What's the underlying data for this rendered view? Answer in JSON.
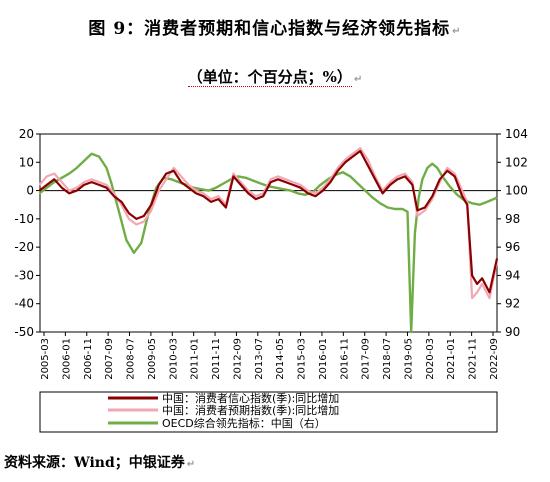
{
  "title": "图 9：消费者预期和信心指数与经济领先指标",
  "subtitle": "（单位：个百分点；%）",
  "source": "资料来源：Wind；中银证券",
  "chart_data": {
    "type": "line",
    "left_axis": {
      "ticks": [
        "20",
        "10",
        "0",
        "-10",
        "-20",
        "-30",
        "-40",
        "-50"
      ],
      "ylim": [
        -50,
        20
      ]
    },
    "right_axis": {
      "ticks": [
        "104",
        "102",
        "100",
        "98",
        "96",
        "94",
        "92",
        "90"
      ],
      "ylim": [
        90,
        104
      ]
    },
    "x_tick_labels": [
      "2005-03",
      "2006-01",
      "2006-11",
      "2007-09",
      "2008-07",
      "2009-05",
      "2010-03",
      "2011-01",
      "2011-11",
      "2012-09",
      "2013-07",
      "2014-05",
      "2015-03",
      "2016-01",
      "2016-11",
      "2017-09",
      "2018-07",
      "2019-05",
      "2020-03",
      "2021-01",
      "2021-11",
      "2022-09"
    ],
    "x_range": [
      2005.125,
      2023.5
    ],
    "series": [
      {
        "name": "中国：消费者信心指数(季):同比增加",
        "color": "#8b0000",
        "axis": "left",
        "x": [
          2005.1,
          2005.4,
          2005.7,
          2006.0,
          2006.3,
          2006.6,
          2006.9,
          2007.2,
          2007.5,
          2007.8,
          2008.1,
          2008.4,
          2008.7,
          2009.0,
          2009.3,
          2009.6,
          2009.9,
          2010.2,
          2010.5,
          2010.8,
          2011.1,
          2011.4,
          2011.7,
          2012.0,
          2012.3,
          2012.6,
          2012.9,
          2013.2,
          2013.5,
          2013.8,
          2014.1,
          2014.4,
          2014.7,
          2015.0,
          2015.3,
          2015.6,
          2015.9,
          2016.2,
          2016.5,
          2016.8,
          2017.1,
          2017.4,
          2017.7,
          2018.0,
          2018.3,
          2018.6,
          2018.9,
          2019.2,
          2019.5,
          2019.8,
          2020.1,
          2020.3,
          2020.6,
          2020.9,
          2021.2,
          2021.5,
          2021.8,
          2022.1,
          2022.3,
          2022.5,
          2022.7,
          2022.9,
          2023.2,
          2023.5
        ],
        "y": [
          0,
          2,
          4,
          1,
          -1,
          0,
          2,
          3,
          2,
          1,
          -2,
          -4,
          -8,
          -10,
          -9,
          -5,
          2,
          6,
          7,
          3,
          1,
          -1,
          -2,
          -4,
          -3,
          -6,
          5,
          2,
          -1,
          -3,
          -2,
          3,
          4,
          3,
          2,
          1,
          -1,
          -2,
          0,
          3,
          7,
          10,
          12,
          14,
          9,
          4,
          -1,
          2,
          4,
          5,
          2,
          -7,
          -6,
          -2,
          4,
          7,
          5,
          -2,
          -5,
          -30,
          -33,
          -31,
          -36,
          -24
        ]
      },
      {
        "name": "中国：消费者预期指数(季):同比增加",
        "color": "#f2a7b3",
        "axis": "left",
        "x": [
          2005.1,
          2005.4,
          2005.7,
          2006.0,
          2006.3,
          2006.6,
          2006.9,
          2007.2,
          2007.5,
          2007.8,
          2008.1,
          2008.4,
          2008.7,
          2009.0,
          2009.3,
          2009.6,
          2009.9,
          2010.2,
          2010.5,
          2010.8,
          2011.1,
          2011.4,
          2011.7,
          2012.0,
          2012.3,
          2012.6,
          2012.9,
          2013.2,
          2013.5,
          2013.8,
          2014.1,
          2014.4,
          2014.7,
          2015.0,
          2015.3,
          2015.6,
          2015.9,
          2016.2,
          2016.5,
          2016.8,
          2017.1,
          2017.4,
          2017.7,
          2018.0,
          2018.3,
          2018.6,
          2018.9,
          2019.2,
          2019.5,
          2019.8,
          2020.1,
          2020.3,
          2020.6,
          2020.9,
          2021.2,
          2021.5,
          2021.8,
          2022.1,
          2022.3,
          2022.5,
          2022.7,
          2022.9,
          2023.2,
          2023.5
        ],
        "y": [
          2,
          5,
          6,
          3,
          0,
          1,
          3,
          4,
          3,
          2,
          -1,
          -5,
          -10,
          -12,
          -11,
          -7,
          0,
          4,
          8,
          5,
          2,
          0,
          -1,
          -3,
          -2,
          -5,
          6,
          3,
          0,
          -2,
          -1,
          4,
          5,
          4,
          3,
          2,
          0,
          -1,
          1,
          4,
          8,
          11,
          13,
          15,
          11,
          5,
          0,
          3,
          5,
          6,
          3,
          -9,
          -7,
          -3,
          3,
          8,
          6,
          0,
          -4,
          -38,
          -36,
          -33,
          -38,
          -25
        ]
      },
      {
        "name": "OECD综合领先指标：中国（右）",
        "color": "#70ad47",
        "axis": "right",
        "x": [
          2005.1,
          2005.4,
          2005.7,
          2006.0,
          2006.3,
          2006.6,
          2006.9,
          2007.2,
          2007.5,
          2007.8,
          2008.0,
          2008.3,
          2008.6,
          2008.9,
          2009.2,
          2009.5,
          2009.8,
          2010.1,
          2010.4,
          2010.7,
          2011.0,
          2011.3,
          2011.6,
          2011.9,
          2012.2,
          2012.5,
          2012.8,
          2013.1,
          2013.4,
          2013.7,
          2014.0,
          2014.3,
          2014.6,
          2014.9,
          2015.2,
          2015.5,
          2015.8,
          2016.1,
          2016.4,
          2016.7,
          2017.0,
          2017.3,
          2017.6,
          2017.9,
          2018.2,
          2018.5,
          2018.8,
          2019.1,
          2019.4,
          2019.7,
          2019.9,
          2020.05,
          2020.2,
          2020.35,
          2020.5,
          2020.7,
          2020.9,
          2021.1,
          2021.3,
          2021.6,
          2021.9,
          2022.2,
          2022.5,
          2022.8,
          2023.1,
          2023.5
        ],
        "y": [
          99.8,
          100.2,
          100.6,
          100.9,
          101.2,
          101.6,
          102.1,
          102.6,
          102.4,
          101.6,
          100.5,
          98.5,
          96.5,
          95.6,
          96.3,
          98.5,
          100.2,
          100.9,
          100.8,
          100.6,
          100.4,
          100.2,
          100.1,
          100.0,
          100.2,
          100.5,
          100.8,
          101.0,
          100.9,
          100.7,
          100.5,
          100.3,
          100.2,
          100.1,
          100.0,
          99.8,
          99.7,
          99.9,
          100.4,
          100.8,
          101.1,
          101.3,
          101.0,
          100.5,
          100.0,
          99.5,
          99.1,
          98.8,
          98.7,
          98.7,
          98.5,
          90.0,
          97.0,
          99.5,
          100.8,
          101.6,
          101.9,
          101.6,
          101.0,
          100.3,
          99.7,
          99.3,
          99.1,
          99.0,
          99.2,
          99.5
        ]
      }
    ]
  }
}
